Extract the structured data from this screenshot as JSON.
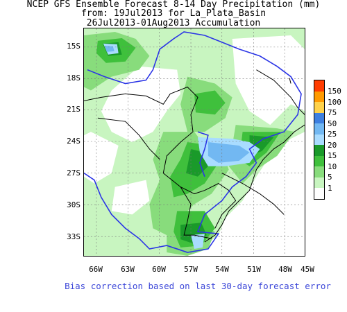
{
  "title": {
    "line1": "NCEP GFS Ensemble Forecast 8-14 Day Precipitation (mm)",
    "line2": "from: 19Jul2013  for La_Plata_Basin",
    "line3": "26Jul2013-01Aug2013 Accumulation"
  },
  "axes": {
    "lat_labels": [
      "15S",
      "18S",
      "21S",
      "24S",
      "27S",
      "30S",
      "33S"
    ],
    "lon_labels": [
      "66W",
      "63W",
      "60W",
      "57W",
      "54W",
      "51W",
      "48W",
      "45W"
    ]
  },
  "legend": {
    "levels": [
      "150",
      "100",
      "75",
      "50",
      "25",
      "20",
      "15",
      "10",
      "5",
      "1"
    ],
    "colors": [
      "#ff3c00",
      "#ff9a00",
      "#ffd24a",
      "#3d7fe0",
      "#72b8f2",
      "#a9dcff",
      "#1a9a2a",
      "#3fc03c",
      "#88dc7c",
      "#c8f5c0",
      "#ffffff"
    ]
  },
  "colors": {
    "boundary_basin": "#2b35e6",
    "boundary_country": "#000000"
  },
  "footer": "Bias correction based on last 30-day forecast error"
}
